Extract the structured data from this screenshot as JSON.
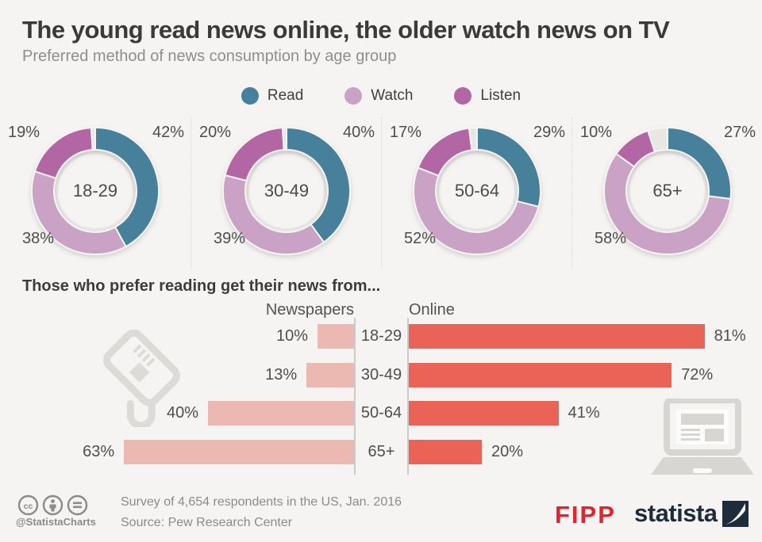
{
  "page": {
    "title": "The young read news online, the older watch news on TV",
    "subtitle": "Preferred method of news consumption by age group"
  },
  "legend": {
    "items": [
      {
        "label": "Read",
        "color": "#46809B"
      },
      {
        "label": "Watch",
        "color": "#C9A2C6"
      },
      {
        "label": "Listen",
        "color": "#B266A3"
      }
    ]
  },
  "chart_data": [
    {
      "type": "pie",
      "subtype": "donut",
      "title": "Preferred method of news consumption by age group",
      "legend_position": "top",
      "series_names": [
        "Read",
        "Watch",
        "Listen"
      ],
      "colors": {
        "read": "#46809B",
        "watch": "#C9A2C6",
        "listen": "#B266A3",
        "remainder": "#E8E7E4"
      },
      "value_format": "percent",
      "groups": [
        {
          "label": "18-29",
          "values": {
            "read": 42,
            "watch": 38,
            "listen": 19
          }
        },
        {
          "label": "30-49",
          "values": {
            "read": 40,
            "watch": 39,
            "listen": 20
          }
        },
        {
          "label": "50-64",
          "values": {
            "read": 29,
            "watch": 52,
            "listen": 17
          }
        },
        {
          "label": "65+",
          "values": {
            "read": 27,
            "watch": 58,
            "listen": 10
          }
        }
      ]
    },
    {
      "type": "bar",
      "orientation": "horizontal",
      "title": "Those who prefer reading get their news from...",
      "categories": [
        "18-29",
        "30-49",
        "50-64",
        "65+"
      ],
      "xlim": [
        0,
        85
      ],
      "value_format": "percent",
      "series": [
        {
          "name": "Newspapers",
          "color": "#ECB9B2",
          "direction": "left",
          "values": [
            10,
            13,
            40,
            63
          ]
        },
        {
          "name": "Online",
          "color": "#EB6356",
          "direction": "right",
          "values": [
            81,
            72,
            41,
            20
          ]
        }
      ]
    }
  ],
  "footer": {
    "handle": "@StatistaCharts",
    "survey_note": "Survey of 4,654 respondents in the US, Jan. 2016",
    "source": "Source: Pew Research Center",
    "fipp": "FIPP",
    "statista": "statista"
  }
}
